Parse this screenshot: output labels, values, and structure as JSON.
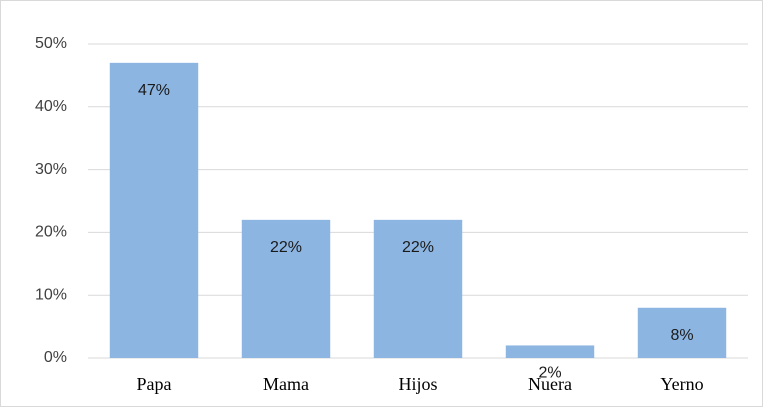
{
  "chart_data": {
    "type": "bar",
    "categories": [
      "Papa",
      "Mama",
      "Hijos",
      "Nuera",
      "Yerno"
    ],
    "values": [
      47,
      22,
      22,
      2,
      8
    ],
    "value_labels": [
      "47%",
      "22%",
      "22%",
      "2%",
      "8%"
    ],
    "color": "#8db5e2",
    "ylim": [
      0,
      50
    ],
    "yticks": [
      {
        "value": 0,
        "label": "0%"
      },
      {
        "value": 10,
        "label": "10%"
      },
      {
        "value": 20,
        "label": "20%"
      },
      {
        "value": 30,
        "label": "30%"
      },
      {
        "value": 40,
        "label": "40%"
      },
      {
        "value": 50,
        "label": "50%"
      }
    ],
    "grid": true
  }
}
